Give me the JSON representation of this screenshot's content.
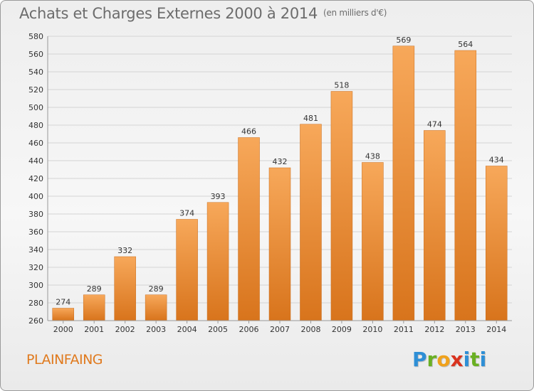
{
  "header": {
    "title": "Achats et Charges Externes 2000 à 2014",
    "unit": "(en milliers d'€)"
  },
  "footer": {
    "commune": "PLAINFAING",
    "logo_letters": [
      "P",
      "r",
      "o",
      "x",
      "i",
      "t",
      "i"
    ],
    "logo_colors": [
      "#2e8fd6",
      "#6ab023",
      "#f0a21c",
      "#d9331f",
      "#2e8fd6",
      "#6ab023",
      "#2e8fd6"
    ]
  },
  "colors": {
    "bar_top": "#f7a85a",
    "bar_bottom": "#d8741c",
    "bar_edge": "#c96d1d",
    "grid": "#d4d4d4",
    "axis_text": "#333333",
    "label_text": "#333333"
  },
  "chart_data": {
    "type": "bar",
    "title": "Achats et Charges Externes 2000 à 2014",
    "subtitle": "(en milliers d'€)",
    "xlabel": "",
    "ylabel": "",
    "categories": [
      "2000",
      "2001",
      "2002",
      "2003",
      "2004",
      "2005",
      "2006",
      "2007",
      "2008",
      "2009",
      "2010",
      "2011",
      "2012",
      "2013",
      "2014"
    ],
    "values": [
      274,
      289,
      332,
      289,
      374,
      393,
      466,
      432,
      481,
      518,
      438,
      569,
      474,
      564,
      434
    ],
    "ylim": [
      260,
      580
    ],
    "yticks": [
      260,
      280,
      300,
      320,
      340,
      360,
      380,
      400,
      420,
      440,
      460,
      480,
      500,
      520,
      540,
      560,
      580
    ],
    "grid": true,
    "legend": "none"
  }
}
